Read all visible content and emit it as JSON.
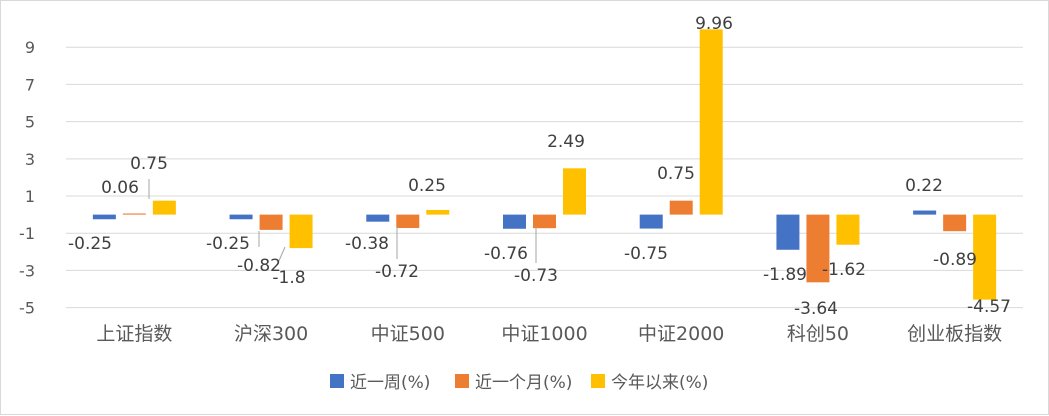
{
  "chart_data": {
    "type": "bar",
    "categories": [
      "上证指数",
      "沪深300",
      "中证500",
      "中证1000",
      "中证2000",
      "科创50",
      "创业板指数"
    ],
    "series": [
      {
        "name": "近一周(%)",
        "color": "#4472C4",
        "values": [
          -0.25,
          -0.25,
          -0.38,
          -0.76,
          -0.75,
          -1.89,
          0.22
        ]
      },
      {
        "name": "近一个月(%)",
        "color": "#ED7D31",
        "values": [
          0.06,
          -0.82,
          -0.72,
          -0.73,
          0.75,
          -3.64,
          -0.89
        ]
      },
      {
        "name": "今年以来(%)",
        "color": "#FFC000",
        "values": [
          0.75,
          -1.8,
          0.25,
          2.49,
          9.96,
          -1.62,
          -4.57
        ]
      }
    ],
    "data_labels": [
      [
        "-0.25",
        "-0.25",
        "-0.38",
        "-0.76",
        "-0.75",
        "-1.89",
        "0.22"
      ],
      [
        "0.06",
        "-0.82",
        "-0.72",
        "-0.73",
        "0.75",
        "-3.64",
        "-0.89"
      ],
      [
        "0.75",
        "-1.8",
        "0.25",
        "2.49",
        "9.96",
        "-1.62",
        "-4.57"
      ]
    ],
    "yticks": [
      "9",
      "7",
      "5",
      "3",
      "1",
      "-1",
      "-3",
      "-5"
    ],
    "ylim": [
      -5,
      10
    ],
    "grid": true,
    "legend_position": "bottom"
  }
}
